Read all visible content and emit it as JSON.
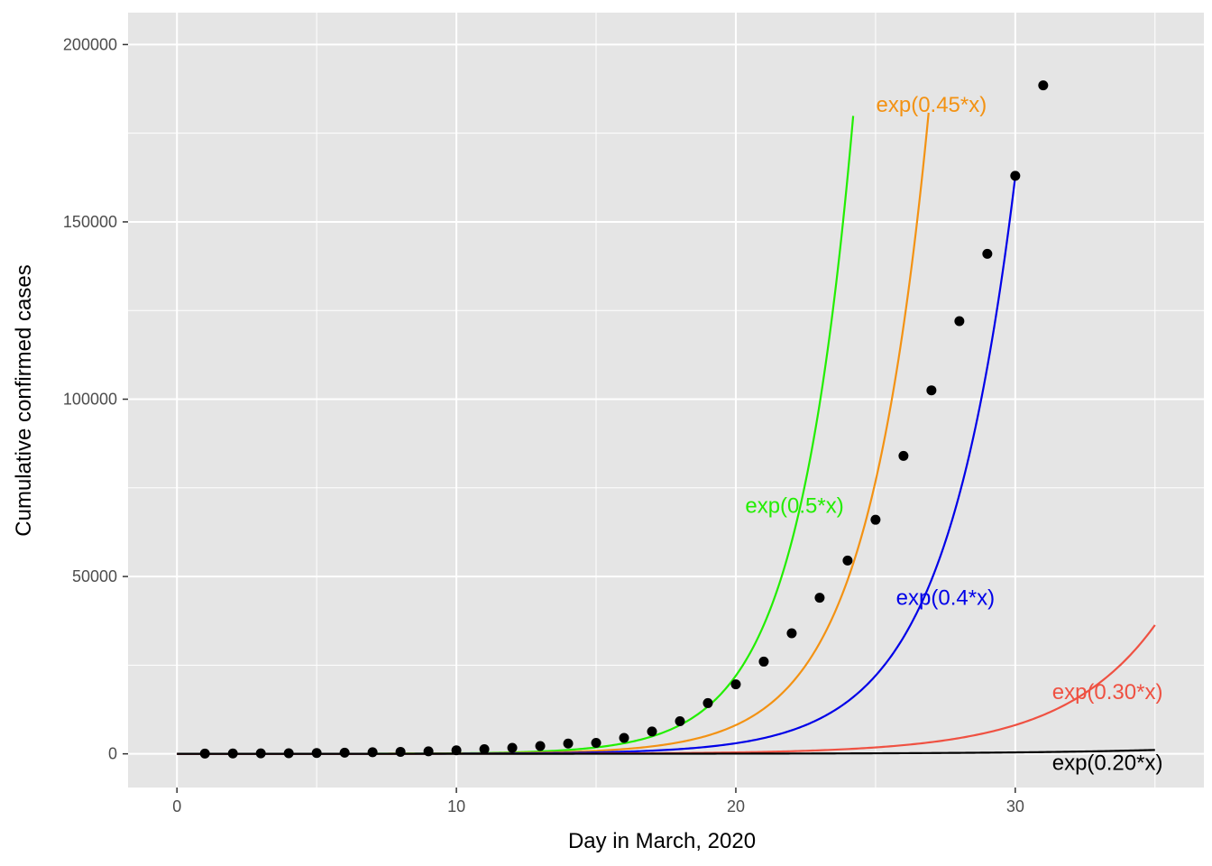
{
  "chart_data": {
    "type": "scatter",
    "xlabel": "Day in March, 2020",
    "ylabel": "Cumulative confirmed cases",
    "xlim": [
      -1.75,
      36.75
    ],
    "ylim": [
      -9500,
      209000
    ],
    "x_ticks": [
      0,
      10,
      20,
      30
    ],
    "x_tick_labels": [
      "0",
      "10",
      "20",
      "30"
    ],
    "y_ticks": [
      0,
      50000,
      100000,
      150000,
      200000
    ],
    "y_tick_labels": [
      "0",
      "50000",
      "100000",
      "150000",
      "200000"
    ],
    "grid": true,
    "panel_background": "#e5e5e5",
    "grid_color": "#ffffff",
    "points": {
      "color": "#000000",
      "x": [
        1,
        2,
        3,
        4,
        5,
        6,
        7,
        8,
        9,
        10,
        11,
        12,
        13,
        14,
        15,
        16,
        17,
        18,
        19,
        20,
        21,
        22,
        23,
        24,
        25,
        26,
        27,
        28,
        29,
        30,
        31
      ],
      "y": [
        75,
        100,
        125,
        160,
        220,
        320,
        440,
        560,
        700,
        1000,
        1300,
        1700,
        2200,
        2900,
        3100,
        4500,
        6300,
        9200,
        14300,
        19600,
        26000,
        34000,
        44000,
        54500,
        66000,
        84000,
        102500,
        122000,
        141000,
        163000,
        188500
      ]
    },
    "curves": [
      {
        "label": "exp(0.5*x)",
        "rate": 0.5,
        "x_end": 24.2,
        "color": "#22ee00",
        "label_x": 22.1,
        "label_y": 70000
      },
      {
        "label": "exp(0.45*x)",
        "rate": 0.45,
        "x_end": 26.9,
        "color": "#f39213",
        "label_x": 27.0,
        "label_y": 183000
      },
      {
        "label": "exp(0.4*x)",
        "rate": 0.4,
        "x_end": 30.0,
        "color": "#0000e8",
        "label_x": 27.5,
        "label_y": 44000
      },
      {
        "label": "exp(0.30*x)",
        "rate": 0.3,
        "x_end": 35.0,
        "color": "#ef5142",
        "label_x": 33.3,
        "label_y": 17500
      },
      {
        "label": "exp(0.20*x)",
        "rate": 0.2,
        "x_end": 35.0,
        "color": "#000000",
        "label_x": 33.3,
        "label_y": -2500
      }
    ]
  }
}
